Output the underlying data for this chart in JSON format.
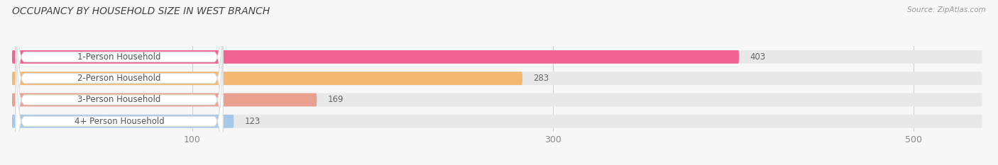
{
  "title": "OCCUPANCY BY HOUSEHOLD SIZE IN WEST BRANCH",
  "source": "Source: ZipAtlas.com",
  "categories": [
    "1-Person Household",
    "2-Person Household",
    "3-Person Household",
    "4+ Person Household"
  ],
  "values": [
    403,
    283,
    169,
    123
  ],
  "bar_colors": [
    "#f06292",
    "#f4b870",
    "#e8a090",
    "#a8c8e8"
  ],
  "background_color": "#f7f7f7",
  "bar_bg_color": "#e8e8e8",
  "xlim": [
    0,
    540
  ],
  "xticks": [
    100,
    300,
    500
  ],
  "title_fontsize": 10,
  "source_fontsize": 7.5,
  "bar_label_fontsize": 8.5,
  "category_fontsize": 8.5,
  "tick_fontsize": 9
}
